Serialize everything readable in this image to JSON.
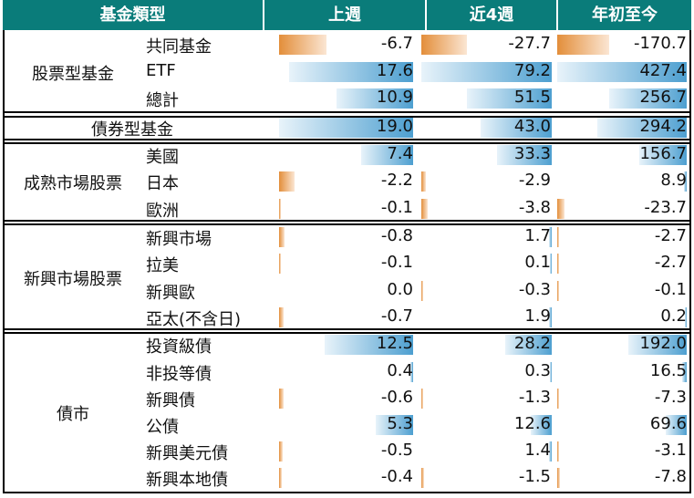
{
  "header": {
    "category_label": "基金類型",
    "columns": [
      "上週",
      "近4週",
      "年初至今"
    ]
  },
  "colors": {
    "header_bg": "#0a7c7a",
    "positive_bar": "#4d9fd0",
    "negative_bar": "#e38e3a"
  },
  "chart_data": {
    "type": "table",
    "columns": [
      "上週",
      "近4週",
      "年初至今"
    ],
    "groups": [
      {
        "name": "股票型基金",
        "rows": [
          {
            "label": "共同基金",
            "values": [
              -6.7,
              -27.7,
              -170.7
            ]
          },
          {
            "label": "ETF",
            "values": [
              17.6,
              79.2,
              427.4
            ]
          },
          {
            "label": "總計",
            "values": [
              10.9,
              51.5,
              256.7
            ]
          }
        ]
      },
      {
        "name": "",
        "rows": [
          {
            "label": "債券型基金",
            "values": [
              19.0,
              43.0,
              294.2
            ]
          }
        ]
      },
      {
        "name": "成熟市場股票",
        "rows": [
          {
            "label": "美國",
            "values": [
              7.4,
              33.3,
              156.7
            ]
          },
          {
            "label": "日本",
            "values": [
              -2.2,
              -2.9,
              8.9
            ]
          },
          {
            "label": "歐洲",
            "values": [
              -0.1,
              -3.8,
              -23.7
            ]
          }
        ]
      },
      {
        "name": "新興市場股票",
        "rows": [
          {
            "label": "新興市場",
            "values": [
              -0.8,
              1.7,
              -2.7
            ]
          },
          {
            "label": "拉美",
            "values": [
              -0.1,
              0.1,
              -2.7
            ]
          },
          {
            "label": "新興歐",
            "values": [
              0.0,
              -0.3,
              -0.1
            ]
          },
          {
            "label": "亞太(不含日)",
            "values": [
              -0.7,
              1.9,
              0.2
            ]
          }
        ]
      },
      {
        "name": "債市",
        "rows": [
          {
            "label": "投資級債",
            "values": [
              12.5,
              28.2,
              192.0
            ]
          },
          {
            "label": "非投等債",
            "values": [
              0.4,
              0.3,
              16.5
            ]
          },
          {
            "label": "新興債",
            "values": [
              -0.6,
              -1.3,
              -7.3
            ]
          },
          {
            "label": "公債",
            "values": [
              5.3,
              12.6,
              69.6
            ]
          },
          {
            "label": "新興美元債",
            "values": [
              -0.5,
              1.4,
              -3.1
            ]
          },
          {
            "label": "新興本地債",
            "values": [
              -0.4,
              -1.5,
              -7.8
            ]
          }
        ]
      }
    ]
  }
}
